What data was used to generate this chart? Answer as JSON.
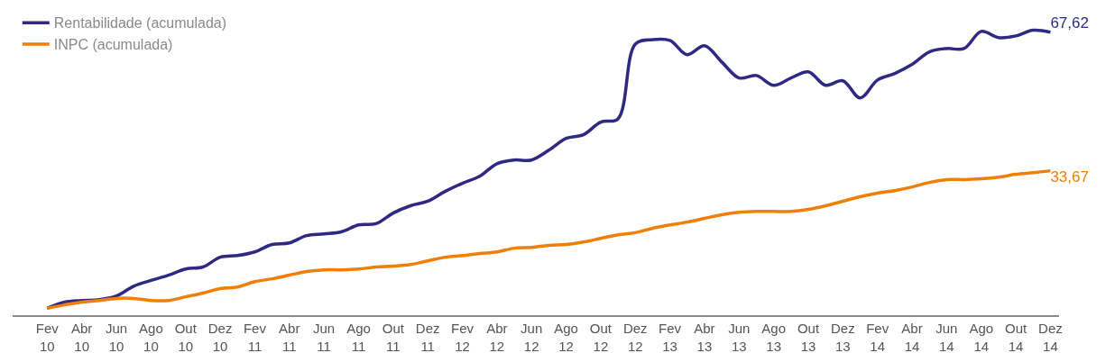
{
  "chart_data": {
    "type": "line",
    "categories": [
      "Fev 10",
      null,
      "Abr 10",
      null,
      "Jun 10",
      null,
      "Ago 10",
      null,
      "Out 10",
      null,
      "Dez 10",
      null,
      "Fev 11",
      null,
      "Abr 11",
      null,
      "Jun 11",
      null,
      "Ago 11",
      null,
      "Out 11",
      null,
      "Dez 11",
      null,
      "Fev 12",
      null,
      "Abr 12",
      null,
      "Jun 12",
      null,
      "Ago 12",
      null,
      "Out 12",
      null,
      "Dez 12",
      null,
      "Fev 13",
      null,
      "Abr 13",
      null,
      "Jun 13",
      null,
      "Ago 13",
      null,
      "Out 13",
      null,
      "Dez 13",
      null,
      "Fev 14",
      null,
      "Abr 14",
      null,
      "Jun 14",
      null,
      "Ago 14",
      null,
      "Out 14",
      null,
      "Dez 14"
    ],
    "series": [
      {
        "name": "Rentabilidade (acumulada)",
        "color": "#2e2a84",
        "values": [
          0,
          1.5,
          1.9,
          2.1,
          3.0,
          5.4,
          6.8,
          8.1,
          9.6,
          10.1,
          12.5,
          12.9,
          13.8,
          15.6,
          16.0,
          17.8,
          18.2,
          18.7,
          20.4,
          20.7,
          23.3,
          25.1,
          26.2,
          28.6,
          30.6,
          32.3,
          35.4,
          36.3,
          36.3,
          38.7,
          41.6,
          42.5,
          45.6,
          46.4,
          64.7,
          65.8,
          65.6,
          62.1,
          64.3,
          60.3,
          56.4,
          57.0,
          54.6,
          56.4,
          57.9,
          54.6,
          55.7,
          51.5,
          55.9,
          57.5,
          59.7,
          62.8,
          63.6,
          63.6,
          67.8,
          66.3,
          66.7,
          68.1,
          67.62
        ],
        "value_labels": [
          null,
          null,
          null,
          null,
          null,
          null,
          null,
          null,
          null,
          null,
          null,
          null,
          null,
          null,
          null,
          null,
          null,
          null,
          null,
          null,
          null,
          null,
          null,
          null,
          null,
          null,
          null,
          null,
          null,
          null,
          null,
          null,
          null,
          null,
          null,
          null,
          null,
          null,
          null,
          null,
          null,
          null,
          null,
          null,
          null,
          null,
          null,
          null,
          null,
          null,
          null,
          null,
          null,
          null,
          null,
          null,
          null,
          null,
          "67,62"
        ]
      },
      {
        "name": "INPC (acumulada)",
        "color": "#f07f09",
        "values": [
          0,
          0.8,
          1.5,
          1.9,
          2.4,
          2.4,
          1.9,
          1.9,
          2.8,
          3.7,
          4.8,
          5.2,
          6.5,
          7.2,
          8.1,
          9.0,
          9.4,
          9.4,
          9.6,
          10.1,
          10.3,
          10.7,
          11.6,
          12.5,
          12.9,
          13.4,
          13.8,
          14.7,
          14.9,
          15.4,
          15.6,
          16.2,
          17.1,
          18.0,
          18.5,
          19.6,
          20.4,
          21.1,
          22.0,
          22.9,
          23.5,
          23.7,
          23.7,
          23.7,
          24.2,
          25.1,
          26.2,
          27.3,
          28.2,
          28.8,
          29.7,
          30.8,
          31.5,
          31.5,
          31.7,
          32.1,
          32.8,
          33.2,
          33.67
        ],
        "value_labels": [
          null,
          null,
          null,
          null,
          null,
          null,
          null,
          null,
          null,
          null,
          null,
          null,
          null,
          null,
          null,
          null,
          null,
          null,
          null,
          null,
          null,
          null,
          null,
          null,
          null,
          null,
          null,
          null,
          null,
          null,
          null,
          null,
          null,
          null,
          null,
          null,
          null,
          null,
          null,
          null,
          null,
          null,
          null,
          null,
          null,
          null,
          null,
          null,
          null,
          null,
          null,
          null,
          null,
          null,
          null,
          null,
          null,
          null,
          "33,67"
        ]
      }
    ],
    "legend": "top left",
    "marker": "none",
    "line_style": "solid"
  }
}
